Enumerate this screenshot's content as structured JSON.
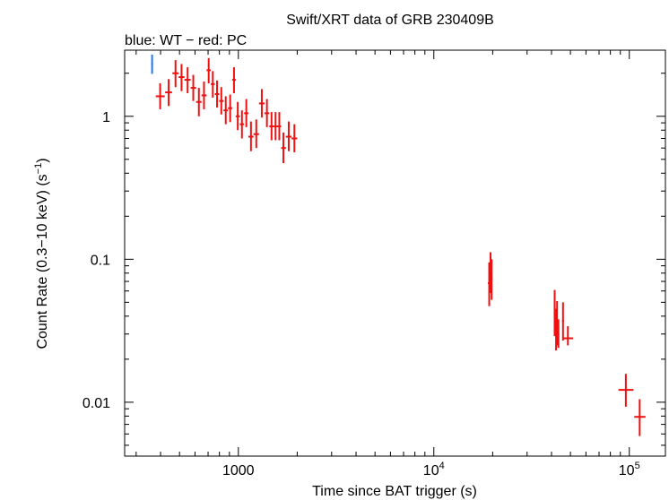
{
  "chart_data": {
    "type": "scatter",
    "title": "Swift/XRT data of GRB 230409B",
    "subtitle": "blue: WT − red: PC",
    "xlabel": "Time since BAT trigger (s)",
    "ylabel": "Count Rate (0.3−10 keV) (s",
    "ylabel_sup": "−1",
    "ylabel_end": ")",
    "x_scale": "log",
    "y_scale": "log",
    "xlim": [
      262,
      153000
    ],
    "ylim": [
      0.0042,
      2.9
    ],
    "grid": false,
    "x_ticks": [
      {
        "value": 1000,
        "base": "1000",
        "exp": ""
      },
      {
        "value": 10000,
        "base": "10",
        "exp": "4"
      },
      {
        "value": 100000,
        "base": "10",
        "exp": "5"
      }
    ],
    "y_ticks": [
      {
        "value": 1,
        "label": "1"
      },
      {
        "value": 0.1,
        "label": "0.1"
      },
      {
        "value": 0.01,
        "label": "0.01"
      }
    ],
    "colors": {
      "wt": "#1e78ff",
      "pc": "#ee1111"
    },
    "series": [
      {
        "mode": "WT",
        "color": "#1e78ff",
        "points": [
          {
            "x": 362,
            "xlo": 358,
            "xhi": 366,
            "y": 2.32,
            "ylo": 1.98,
            "yhi": 2.7
          }
        ]
      },
      {
        "mode": "PC",
        "color": "#ee1111",
        "points": [
          {
            "x": 398,
            "xlo": 378,
            "xhi": 420,
            "y": 1.38,
            "ylo": 1.12,
            "yhi": 1.7
          },
          {
            "x": 440,
            "xlo": 422,
            "xhi": 458,
            "y": 1.47,
            "ylo": 1.18,
            "yhi": 1.82
          },
          {
            "x": 477,
            "xlo": 460,
            "xhi": 495,
            "y": 2.0,
            "ylo": 1.6,
            "yhi": 2.47
          },
          {
            "x": 512,
            "xlo": 495,
            "xhi": 530,
            "y": 1.88,
            "ylo": 1.5,
            "yhi": 2.32
          },
          {
            "x": 550,
            "xlo": 530,
            "xhi": 570,
            "y": 1.8,
            "ylo": 1.45,
            "yhi": 2.2
          },
          {
            "x": 588,
            "xlo": 570,
            "xhi": 608,
            "y": 1.58,
            "ylo": 1.28,
            "yhi": 1.95
          },
          {
            "x": 628,
            "xlo": 608,
            "xhi": 648,
            "y": 1.26,
            "ylo": 1.0,
            "yhi": 1.58
          },
          {
            "x": 667,
            "xlo": 648,
            "xhi": 688,
            "y": 1.4,
            "ylo": 1.12,
            "yhi": 1.75
          },
          {
            "x": 705,
            "xlo": 688,
            "xhi": 722,
            "y": 2.1,
            "ylo": 1.7,
            "yhi": 2.55
          },
          {
            "x": 740,
            "xlo": 722,
            "xhi": 758,
            "y": 1.68,
            "ylo": 1.35,
            "yhi": 2.07
          },
          {
            "x": 778,
            "xlo": 758,
            "xhi": 798,
            "y": 1.43,
            "ylo": 1.15,
            "yhi": 1.78
          },
          {
            "x": 818,
            "xlo": 798,
            "xhi": 840,
            "y": 1.28,
            "ylo": 1.03,
            "yhi": 1.6
          },
          {
            "x": 862,
            "xlo": 840,
            "xhi": 885,
            "y": 1.1,
            "ylo": 0.88,
            "yhi": 1.38
          },
          {
            "x": 908,
            "xlo": 885,
            "xhi": 930,
            "y": 1.14,
            "ylo": 0.91,
            "yhi": 1.42
          },
          {
            "x": 950,
            "xlo": 930,
            "xhi": 970,
            "y": 1.8,
            "ylo": 1.45,
            "yhi": 2.2
          },
          {
            "x": 993,
            "xlo": 970,
            "xhi": 1017,
            "y": 1.0,
            "ylo": 0.8,
            "yhi": 1.26
          },
          {
            "x": 1043,
            "xlo": 1017,
            "xhi": 1070,
            "y": 0.88,
            "ylo": 0.7,
            "yhi": 1.1
          },
          {
            "x": 1098,
            "xlo": 1070,
            "xhi": 1125,
            "y": 1.05,
            "ylo": 0.84,
            "yhi": 1.32
          },
          {
            "x": 1160,
            "xlo": 1125,
            "xhi": 1195,
            "y": 0.72,
            "ylo": 0.57,
            "yhi": 0.92
          },
          {
            "x": 1235,
            "xlo": 1195,
            "xhi": 1275,
            "y": 0.75,
            "ylo": 0.6,
            "yhi": 0.95
          },
          {
            "x": 1318,
            "xlo": 1275,
            "xhi": 1360,
            "y": 1.23,
            "ylo": 0.98,
            "yhi": 1.55
          },
          {
            "x": 1400,
            "xlo": 1360,
            "xhi": 1440,
            "y": 1.05,
            "ylo": 0.84,
            "yhi": 1.32
          },
          {
            "x": 1478,
            "xlo": 1440,
            "xhi": 1515,
            "y": 0.85,
            "ylo": 0.68,
            "yhi": 1.07
          },
          {
            "x": 1550,
            "xlo": 1515,
            "xhi": 1585,
            "y": 0.85,
            "ylo": 0.68,
            "yhi": 1.07
          },
          {
            "x": 1620,
            "xlo": 1585,
            "xhi": 1655,
            "y": 0.85,
            "ylo": 0.68,
            "yhi": 1.07
          },
          {
            "x": 1700,
            "xlo": 1655,
            "xhi": 1750,
            "y": 0.6,
            "ylo": 0.47,
            "yhi": 0.77
          },
          {
            "x": 1810,
            "xlo": 1750,
            "xhi": 1870,
            "y": 0.72,
            "ylo": 0.57,
            "yhi": 0.92
          },
          {
            "x": 1935,
            "xlo": 1870,
            "xhi": 2000,
            "y": 0.7,
            "ylo": 0.56,
            "yhi": 0.88
          },
          {
            "x": 19200,
            "xlo": 18900,
            "xhi": 19500,
            "y": 0.068,
            "ylo": 0.047,
            "yhi": 0.095
          },
          {
            "x": 19500,
            "xlo": 19250,
            "xhi": 19750,
            "y": 0.081,
            "ylo": 0.058,
            "yhi": 0.112
          },
          {
            "x": 19750,
            "xlo": 19550,
            "xhi": 19950,
            "y": 0.073,
            "ylo": 0.052,
            "yhi": 0.1
          },
          {
            "x": 41500,
            "xlo": 41100,
            "xhi": 41900,
            "y": 0.042,
            "ylo": 0.029,
            "yhi": 0.061
          },
          {
            "x": 42200,
            "xlo": 41900,
            "xhi": 42500,
            "y": 0.032,
            "ylo": 0.023,
            "yhi": 0.045
          },
          {
            "x": 42700,
            "xlo": 42500,
            "xhi": 42950,
            "y": 0.036,
            "ylo": 0.025,
            "yhi": 0.051
          },
          {
            "x": 43400,
            "xlo": 43000,
            "xhi": 43800,
            "y": 0.03,
            "ylo": 0.024,
            "yhi": 0.038
          },
          {
            "x": 45800,
            "xlo": 45300,
            "xhi": 46300,
            "y": 0.037,
            "ylo": 0.027,
            "yhi": 0.05
          },
          {
            "x": 48500,
            "xlo": 45800,
            "xhi": 51600,
            "y": 0.028,
            "ylo": 0.025,
            "yhi": 0.034
          },
          {
            "x": 96000,
            "xlo": 88000,
            "xhi": 105000,
            "y": 0.0122,
            "ylo": 0.0093,
            "yhi": 0.0158
          },
          {
            "x": 113000,
            "xlo": 106000,
            "xhi": 121000,
            "y": 0.0079,
            "ylo": 0.0058,
            "yhi": 0.0105
          }
        ]
      }
    ]
  }
}
